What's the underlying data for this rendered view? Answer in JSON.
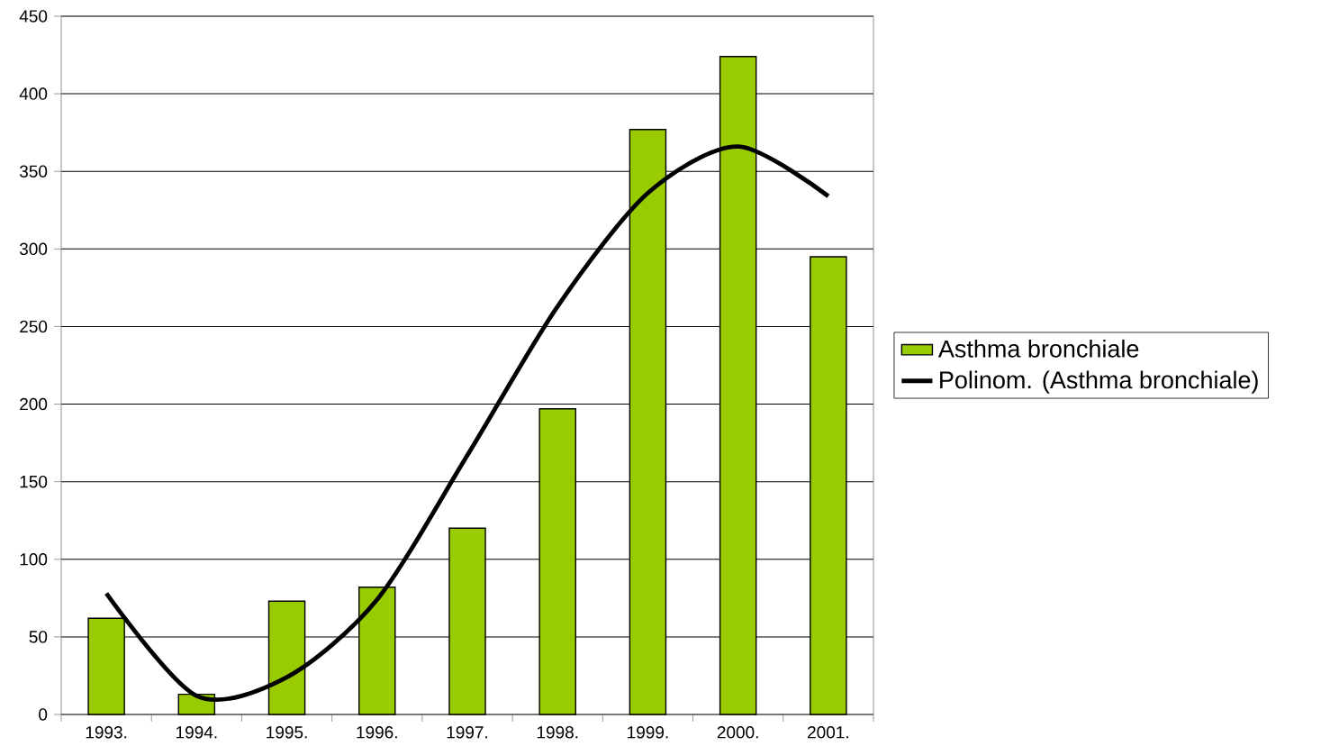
{
  "chart_data": {
    "type": "bar",
    "categories": [
      "1993.",
      "1994.",
      "1995.",
      "1996.",
      "1997.",
      "1998.",
      "1999.",
      "2000.",
      "2001."
    ],
    "series": [
      {
        "name": "Asthma bronchiale",
        "color": "#99cc00",
        "values": [
          62,
          13,
          73,
          82,
          120,
          197,
          377,
          424,
          295
        ]
      },
      {
        "name": "Polinom. (Asthma bronchiale)",
        "type": "line",
        "color": "#000000",
        "values": [
          78,
          12,
          24,
          74,
          167,
          263,
          336,
          366,
          334
        ]
      }
    ],
    "ylim": [
      0,
      450
    ],
    "yticks": [
      0,
      50,
      100,
      150,
      200,
      250,
      300,
      350,
      400,
      450
    ],
    "grid": "y",
    "legend": "right"
  }
}
